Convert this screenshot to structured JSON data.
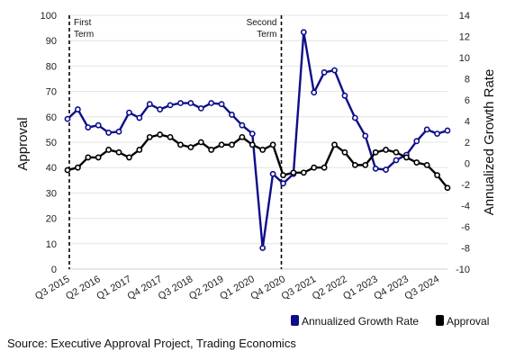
{
  "chart_data": {
    "type": "line",
    "x": [
      "Q3 2015",
      "Q4 2015",
      "Q1 2016",
      "Q2 2016",
      "Q3 2016",
      "Q4 2016",
      "Q1 2017",
      "Q2 2017",
      "Q3 2017",
      "Q4 2017",
      "Q1 2018",
      "Q2 2018",
      "Q3 2018",
      "Q4 2018",
      "Q1 2019",
      "Q2 2019",
      "Q3 2019",
      "Q4 2019",
      "Q1 2020",
      "Q2 2020",
      "Q3 2020",
      "Q4 2020",
      "Q1 2021",
      "Q2 2021",
      "Q3 2021",
      "Q4 2021",
      "Q1 2022",
      "Q2 2022",
      "Q3 2022",
      "Q4 2022",
      "Q1 2023",
      "Q2 2023",
      "Q3 2023",
      "Q4 2023",
      "Q1 2024",
      "Q2 2024",
      "Q3 2024",
      "Q4 2024"
    ],
    "x_tick_labels": [
      "Q3 2015",
      "Q2 2016",
      "Q1 2017",
      "Q4 2017",
      "Q3 2018",
      "Q2 2019",
      "Q1 2020",
      "Q4 2020",
      "Q3 2021",
      "Q2 2022",
      "Q1 2023",
      "Q4 2023",
      "Q3 2024"
    ],
    "series": [
      {
        "name": "Annualized Growth Rate",
        "axis": "right",
        "color": "#0d0d8a",
        "values": [
          4.2,
          5.1,
          3.4,
          3.6,
          2.9,
          3.0,
          4.8,
          4.3,
          5.6,
          5.1,
          5.5,
          5.7,
          5.7,
          5.2,
          5.7,
          5.6,
          4.6,
          3.6,
          2.8,
          -8.0,
          -1.0,
          -1.9,
          -1.0,
          12.4,
          6.7,
          8.6,
          8.8,
          6.4,
          4.3,
          2.6,
          -0.5,
          -0.6,
          0.3,
          0.8,
          2.1,
          3.2,
          2.8,
          3.1
        ]
      },
      {
        "name": "Approval",
        "axis": "left",
        "color": "#000000",
        "values": [
          39,
          40,
          44,
          44,
          47,
          46,
          44,
          47,
          52,
          53,
          52,
          49,
          48,
          50,
          47,
          49,
          49,
          52,
          49,
          47,
          49,
          37,
          38,
          38,
          40,
          40,
          49,
          46,
          41,
          41,
          46,
          47,
          46,
          44,
          42,
          41,
          37,
          32
        ]
      }
    ],
    "left_axis": {
      "label": "Approval",
      "ylim": [
        0,
        100
      ],
      "ticks": [
        "0",
        "10",
        "20",
        "30",
        "40",
        "50",
        "60",
        "70",
        "80",
        "90",
        "100"
      ]
    },
    "right_axis": {
      "label": "Annualized Growth Rate",
      "ylim": [
        -10,
        14
      ],
      "ticks": [
        "-10",
        "-8",
        "-6",
        "-4",
        "-2",
        "0",
        "2",
        "4",
        "6",
        "8",
        "10",
        "12",
        "14"
      ]
    },
    "annotations": [
      {
        "at": "Q3 2015",
        "line1": "First",
        "line2": "Term"
      },
      {
        "at": "Q4 2020",
        "line1": "Second",
        "line2": "Term"
      }
    ],
    "legend": {
      "placement": "bottom-right",
      "entries": [
        "Annualized Growth Rate",
        "Approval"
      ]
    },
    "grid": true,
    "source": "Source: Executive Approval Project, Trading Economics"
  }
}
